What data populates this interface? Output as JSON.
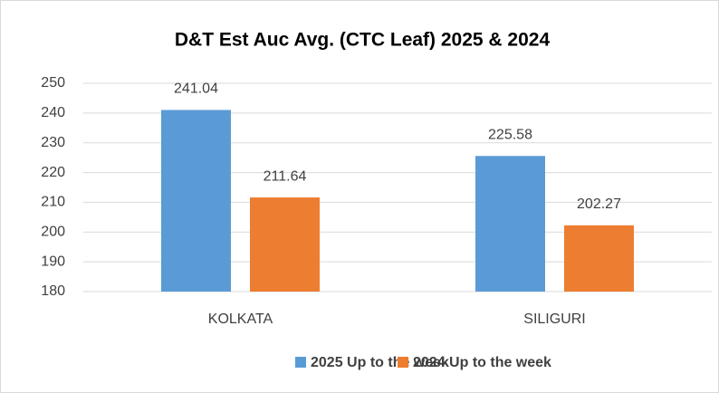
{
  "chart_data": {
    "type": "bar",
    "title": "D&T Est Auc Avg. (CTC Leaf) 2025 & 2024",
    "categories": [
      "KOLKATA",
      "SILIGURI"
    ],
    "series": [
      {
        "name": "2025 Up to the week",
        "color": "#5b9bd5",
        "values": [
          241.04,
          225.58
        ]
      },
      {
        "name": "2024 Up to the week",
        "color": "#ed7d31",
        "values": [
          211.64,
          202.27
        ]
      }
    ],
    "ylim": [
      180,
      250
    ],
    "yticks": [
      180,
      190,
      200,
      210,
      220,
      230,
      240,
      250
    ],
    "grid": true,
    "legend": "bottom"
  }
}
